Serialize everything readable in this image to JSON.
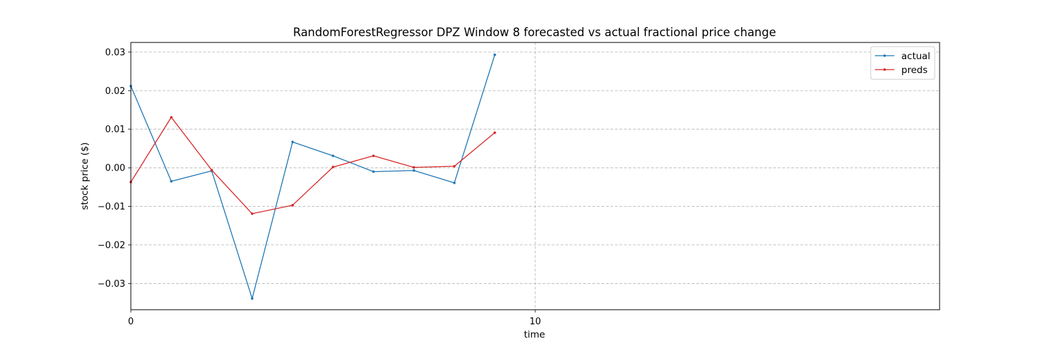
{
  "chart_data": {
    "type": "line",
    "title": "RandomForestRegressor DPZ Window 8 forecasted vs actual fractional price change",
    "xlabel": "time",
    "ylabel": "stock price ($)",
    "xlim": [
      0,
      20
    ],
    "ylim": [
      -0.0368,
      0.0325
    ],
    "xticks": [
      0,
      10
    ],
    "yticks": [
      -0.03,
      -0.02,
      -0.01,
      0.0,
      0.01,
      0.02,
      0.03
    ],
    "ytick_labels": [
      "−0.03",
      "−0.02",
      "−0.01",
      "0.00",
      "0.01",
      "0.02",
      "0.03"
    ],
    "grid": true,
    "legend_position": "top-right",
    "x": [
      0,
      1,
      2,
      3,
      4,
      5,
      6,
      7,
      8,
      9
    ],
    "series": [
      {
        "name": "actual",
        "color": "#1f77b4",
        "values": [
          0.0212,
          -0.0035,
          -0.0008,
          -0.0339,
          0.0067,
          0.0031,
          -0.001,
          -0.0007,
          -0.0039,
          0.0293
        ]
      },
      {
        "name": "preds",
        "color": "#d62728",
        "values": [
          -0.0037,
          0.0131,
          -0.0006,
          -0.0119,
          -0.0097,
          0.0002,
          0.0031,
          0.0001,
          0.0004,
          0.0091
        ]
      }
    ]
  }
}
